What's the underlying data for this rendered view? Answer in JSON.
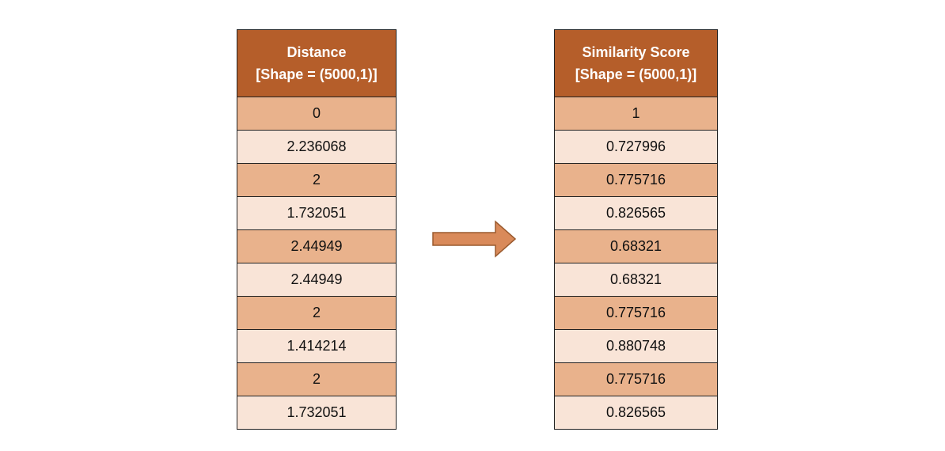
{
  "left_table": {
    "header_line1": "Distance",
    "header_line2": "[Shape = (5000,1)]",
    "values": [
      "0",
      "2.236068",
      "2",
      "1.732051",
      "2.44949",
      "2.44949",
      "2",
      "1.414214",
      "2",
      "1.732051"
    ]
  },
  "right_table": {
    "header_line1": "Similarity Score",
    "header_line2": "[Shape = (5000,1)]",
    "values": [
      "1",
      "0.727996",
      "0.775716",
      "0.826565",
      "0.68321",
      "0.68321",
      "0.775716",
      "0.880748",
      "0.775716",
      "0.826565"
    ]
  },
  "arrow": {
    "icon": "right-arrow-icon",
    "fill_color": "#d98a5a",
    "stroke_color": "#9a5a2e"
  },
  "colors": {
    "header": "#b55e2a",
    "row_dark": "#e9b28c",
    "row_light": "#f9e4d7"
  }
}
